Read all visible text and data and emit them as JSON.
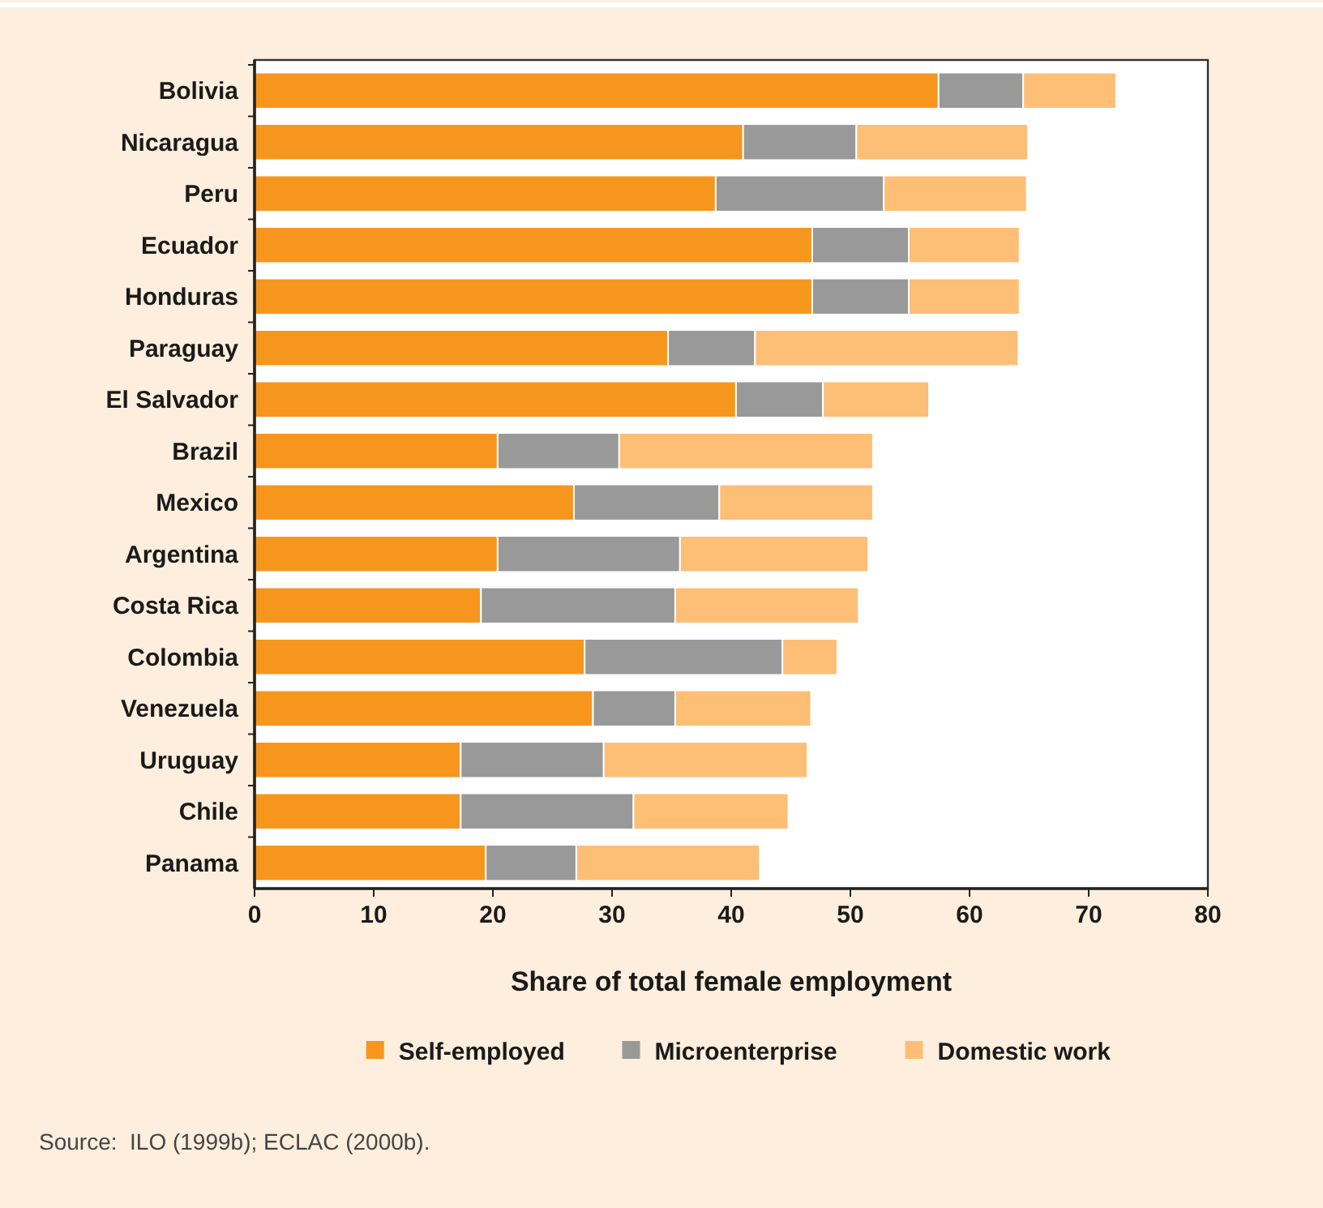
{
  "chart_data": {
    "type": "bar",
    "orientation": "horizontal",
    "stacked": true,
    "categories": [
      "Bolivia",
      "Nicaragua",
      "Peru",
      "Ecuador",
      "Honduras",
      "Paraguay",
      "El Salvador",
      "Brazil",
      "Mexico",
      "Argentina",
      "Costa Rica",
      "Colombia",
      "Venezuela",
      "Uruguay",
      "Chile",
      "Panama"
    ],
    "series": [
      {
        "name": "Self-employed",
        "color": "#f7961c",
        "values": [
          57.4,
          41,
          38.7,
          46.8,
          46.8,
          34.7,
          40.4,
          20.4,
          26.8,
          20.4,
          19,
          27.7,
          28.4,
          17.3,
          17.3,
          19.4
        ]
      },
      {
        "name": "Microenterprise",
        "color": "#999999",
        "values": [
          7.1,
          9.5,
          14.1,
          8.1,
          8.1,
          7.3,
          7.3,
          10.2,
          12.2,
          15.3,
          16.3,
          16.6,
          6.9,
          12,
          14.5,
          7.6
        ]
      },
      {
        "name": "Domestic work",
        "color": "#fdbe76",
        "values": [
          7.8,
          14.4,
          12,
          9.3,
          9.3,
          22.1,
          8.9,
          21.3,
          12.9,
          15.8,
          15.4,
          4.6,
          11.4,
          17.1,
          13,
          15.4
        ]
      }
    ],
    "xlabel": "Share of total female employment",
    "xlim": [
      0,
      80
    ],
    "xticks": [
      0,
      10,
      20,
      30,
      40,
      50,
      60,
      70,
      80
    ],
    "legend": "bottom",
    "grid": false,
    "annotations": [
      "Source:  ILO (1999b); ECLAC (2000b)."
    ]
  }
}
